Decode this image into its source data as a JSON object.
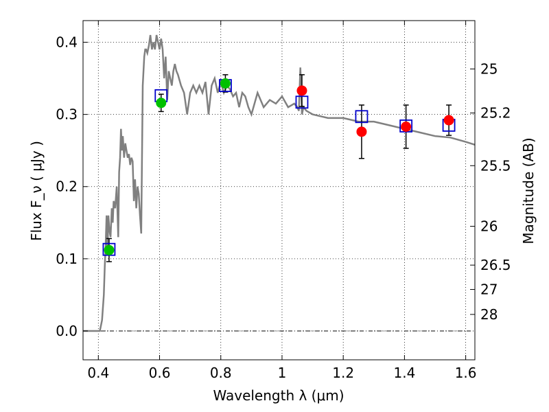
{
  "chart_data": {
    "type": "line",
    "title": "",
    "xlabel": "Wavelength  λ (μm)",
    "ylabel": "Flux  F_ν  ( μJy )",
    "y2label": "Magnitude (AB)",
    "xlim": [
      0.35,
      1.63
    ],
    "ylim": [
      -0.04,
      0.43
    ],
    "grid": true,
    "x_ticks": [
      0.4,
      0.6,
      0.8,
      1.0,
      1.2,
      1.4,
      1.6
    ],
    "x_tick_labels": [
      "0.4",
      "0.6",
      "0.8",
      "1",
      "1.2",
      "1.4",
      "1.6"
    ],
    "y_ticks": [
      0.0,
      0.1,
      0.2,
      0.3,
      0.4
    ],
    "y_tick_labels": [
      "0.0",
      "0.1",
      "0.2",
      "0.3",
      "0.4"
    ],
    "y2_ticks": [
      {
        "label": "25",
        "flux": 0.363
      },
      {
        "label": "25.2",
        "flux": 0.302
      },
      {
        "label": "25.5",
        "flux": 0.229
      },
      {
        "label": "26",
        "flux": 0.145
      },
      {
        "label": "26.5",
        "flux": 0.0912
      },
      {
        "label": "27",
        "flux": 0.0575
      },
      {
        "label": "28",
        "flux": 0.0229
      }
    ],
    "colors": {
      "model": "#808080",
      "green": "#00c000",
      "red": "#ff0000",
      "model_box": "#0000cc",
      "errorbar": "#000000"
    },
    "series": [
      {
        "type": "line",
        "x": [
          0.35,
          0.405,
          0.412,
          0.418,
          0.421,
          0.424,
          0.427,
          0.43,
          0.433,
          0.436,
          0.44,
          0.444,
          0.447,
          0.45,
          0.455,
          0.46,
          0.465,
          0.468,
          0.471,
          0.474,
          0.477,
          0.48,
          0.484,
          0.488,
          0.492,
          0.496,
          0.5,
          0.504,
          0.508,
          0.512,
          0.516,
          0.52,
          0.524,
          0.528,
          0.532,
          0.536,
          0.54,
          0.545,
          0.55,
          0.553,
          0.556,
          0.56,
          0.565,
          0.57,
          0.575,
          0.58,
          0.585,
          0.59,
          0.595,
          0.6,
          0.605,
          0.61,
          0.615,
          0.62,
          0.625,
          0.63,
          0.635,
          0.64,
          0.645,
          0.65,
          0.655,
          0.66,
          0.67,
          0.68,
          0.69,
          0.7,
          0.71,
          0.72,
          0.73,
          0.74,
          0.75,
          0.76,
          0.77,
          0.78,
          0.79,
          0.8,
          0.81,
          0.82,
          0.83,
          0.84,
          0.85,
          0.86,
          0.87,
          0.88,
          0.89,
          0.9,
          0.92,
          0.94,
          0.96,
          0.98,
          1.0,
          1.02,
          1.04,
          1.05,
          1.055,
          1.06,
          1.065,
          1.07,
          1.08,
          1.1,
          1.12,
          1.15,
          1.2,
          1.25,
          1.3,
          1.35,
          1.4,
          1.45,
          1.5,
          1.55,
          1.6,
          1.63
        ],
        "y": [
          0.0,
          0.0,
          0.015,
          0.05,
          0.09,
          0.12,
          0.16,
          0.11,
          0.16,
          0.14,
          0.13,
          0.17,
          0.15,
          0.18,
          0.17,
          0.2,
          0.13,
          0.22,
          0.24,
          0.28,
          0.25,
          0.27,
          0.24,
          0.26,
          0.25,
          0.24,
          0.245,
          0.23,
          0.24,
          0.235,
          0.18,
          0.21,
          0.17,
          0.2,
          0.19,
          0.16,
          0.135,
          0.34,
          0.38,
          0.39,
          0.39,
          0.385,
          0.395,
          0.41,
          0.39,
          0.4,
          0.39,
          0.41,
          0.4,
          0.39,
          0.405,
          0.39,
          0.35,
          0.38,
          0.32,
          0.36,
          0.35,
          0.34,
          0.36,
          0.37,
          0.36,
          0.355,
          0.34,
          0.33,
          0.3,
          0.33,
          0.34,
          0.33,
          0.34,
          0.33,
          0.345,
          0.3,
          0.34,
          0.35,
          0.33,
          0.345,
          0.33,
          0.34,
          0.335,
          0.325,
          0.33,
          0.31,
          0.33,
          0.325,
          0.31,
          0.3,
          0.33,
          0.31,
          0.32,
          0.315,
          0.325,
          0.31,
          0.315,
          0.31,
          0.305,
          0.365,
          0.3,
          0.31,
          0.305,
          0.3,
          0.298,
          0.295,
          0.295,
          0.29,
          0.29,
          0.285,
          0.28,
          0.275,
          0.27,
          0.268,
          0.262,
          0.258
        ]
      },
      {
        "type": "points",
        "name": "green",
        "x": [
          0.435,
          0.605,
          0.815
        ],
        "y": [
          0.112,
          0.316,
          0.343
        ],
        "yerr": [
          0.016,
          0.012,
          0.012
        ]
      },
      {
        "type": "points",
        "name": "red",
        "x": [
          1.065,
          1.26,
          1.405,
          1.545
        ],
        "y": [
          0.333,
          0.276,
          0.283,
          0.292
        ],
        "yerr": [
          0.022,
          0.037,
          0.03,
          0.021
        ]
      },
      {
        "type": "boxes",
        "name": "model_box",
        "x": [
          0.435,
          0.605,
          0.815,
          1.065,
          1.26,
          1.405,
          1.545
        ],
        "y": [
          0.113,
          0.326,
          0.34,
          0.317,
          0.297,
          0.284,
          0.285
        ]
      }
    ]
  }
}
